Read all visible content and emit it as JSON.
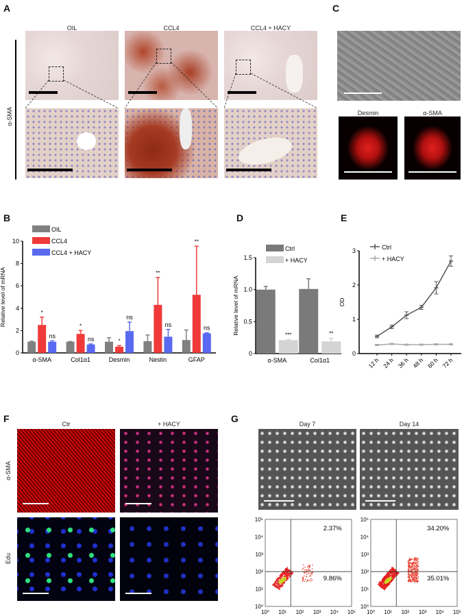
{
  "panels": {
    "A": "A",
    "B": "B",
    "C": "C",
    "D": "D",
    "E": "E",
    "F": "F",
    "G": "G"
  },
  "panel_a": {
    "row_label": "α-SMA",
    "columns": [
      "OIL",
      "CCL4",
      "CCL4 + HACY"
    ]
  },
  "panel_c": {
    "labels": [
      "Desmin",
      "α-SMA"
    ]
  },
  "panel_f": {
    "columns": [
      "Ctr",
      "+ HACY"
    ],
    "rows": [
      "α-SMA",
      "Edu"
    ]
  },
  "panel_g": {
    "columns": [
      "Day 7",
      "Day 14"
    ]
  },
  "chart_data": [
    {
      "id": "B",
      "type": "bar",
      "ylabel": "Relative level of  mRNA",
      "ylim": [
        0,
        10
      ],
      "yticks": [
        0,
        2,
        4,
        6,
        8,
        10
      ],
      "categories": [
        "α-SMA",
        "Col1α1",
        "Desmin",
        "Nestin",
        "GFAP"
      ],
      "legend": "top-left",
      "series": [
        {
          "name": "OIL",
          "color": "#808080",
          "values": [
            1.0,
            1.0,
            1.0,
            1.05,
            1.15
          ],
          "errors": [
            0.05,
            0.02,
            0.35,
            0.55,
            0.9
          ],
          "labels": [
            "",
            "",
            "",
            "",
            ""
          ]
        },
        {
          "name": "CCL4",
          "color": "#f03a3a",
          "values": [
            2.5,
            1.7,
            0.55,
            4.3,
            5.2
          ],
          "errors": [
            0.7,
            0.3,
            0.1,
            2.45,
            4.35
          ],
          "labels": [
            "*",
            "*",
            "*",
            "**",
            "**"
          ]
        },
        {
          "name": "CCL4 + HACY",
          "color": "#5a6af0",
          "values": [
            1.0,
            0.75,
            1.95,
            1.45,
            1.75
          ],
          "errors": [
            0.08,
            0.05,
            0.8,
            0.65,
            0.05
          ],
          "labels": [
            "ns",
            "ns",
            "ns",
            "ns",
            "ns"
          ]
        }
      ]
    },
    {
      "id": "D",
      "type": "bar",
      "ylabel": "Relative level of  mRNA",
      "ylim": [
        0,
        1.5
      ],
      "yticks": [
        "0",
        "0.5",
        "1.0",
        "1.5"
      ],
      "categories": [
        "α-SMA",
        "Col1α1"
      ],
      "legend": "top-left",
      "series": [
        {
          "name": "Ctrl",
          "color": "#7a7a7a",
          "values": [
            1.0,
            1.01
          ],
          "errors": [
            0.05,
            0.16
          ],
          "labels": [
            "",
            ""
          ]
        },
        {
          "name": "+ HACY",
          "color": "#d4d4d4",
          "values": [
            0.21,
            0.19
          ],
          "errors": [
            0.01,
            0.05
          ],
          "labels": [
            "***",
            "**"
          ]
        }
      ]
    },
    {
      "id": "E",
      "type": "line",
      "ylabel": "OD",
      "ylim": [
        0,
        3
      ],
      "yticks": [
        0,
        1,
        2,
        3
      ],
      "categories": [
        "12 h",
        "24 h",
        "36 h",
        "48 h",
        "60 h",
        "72 h"
      ],
      "legend": "top-left",
      "series": [
        {
          "name": "Ctrl",
          "color": "#555555",
          "values": [
            0.5,
            0.78,
            1.12,
            1.35,
            1.92,
            2.7
          ],
          "errors": [
            0.04,
            0.05,
            0.1,
            0.06,
            0.18,
            0.15
          ]
        },
        {
          "name": "+ HACY",
          "color": "#a8a8a8",
          "values": [
            0.25,
            0.28,
            0.26,
            0.26,
            0.27,
            0.27
          ],
          "errors": [
            0.02,
            0.02,
            0.02,
            0.02,
            0.02,
            0.02
          ]
        }
      ]
    },
    {
      "id": "G-day7",
      "type": "scatter",
      "scale": "log",
      "xlim": [
        1,
        100000
      ],
      "ylim": [
        1,
        100000
      ],
      "ticks": [
        "10⁰",
        "10¹",
        "10²",
        "10³",
        "10⁴",
        "10⁵"
      ],
      "gate": [
        30,
        100
      ],
      "quadrants": {
        "upper_right": "2.37%",
        "lower_right": "9.86%"
      }
    },
    {
      "id": "G-day14",
      "type": "scatter",
      "scale": "log",
      "xlim": [
        1,
        100000
      ],
      "ylim": [
        1,
        100000
      ],
      "ticks": [
        "10⁰",
        "10¹",
        "10²",
        "10³",
        "10⁴",
        "10⁵"
      ],
      "gate": [
        30,
        100
      ],
      "quadrants": {
        "upper_right": "34.20%",
        "lower_right": "35.01%"
      }
    }
  ]
}
